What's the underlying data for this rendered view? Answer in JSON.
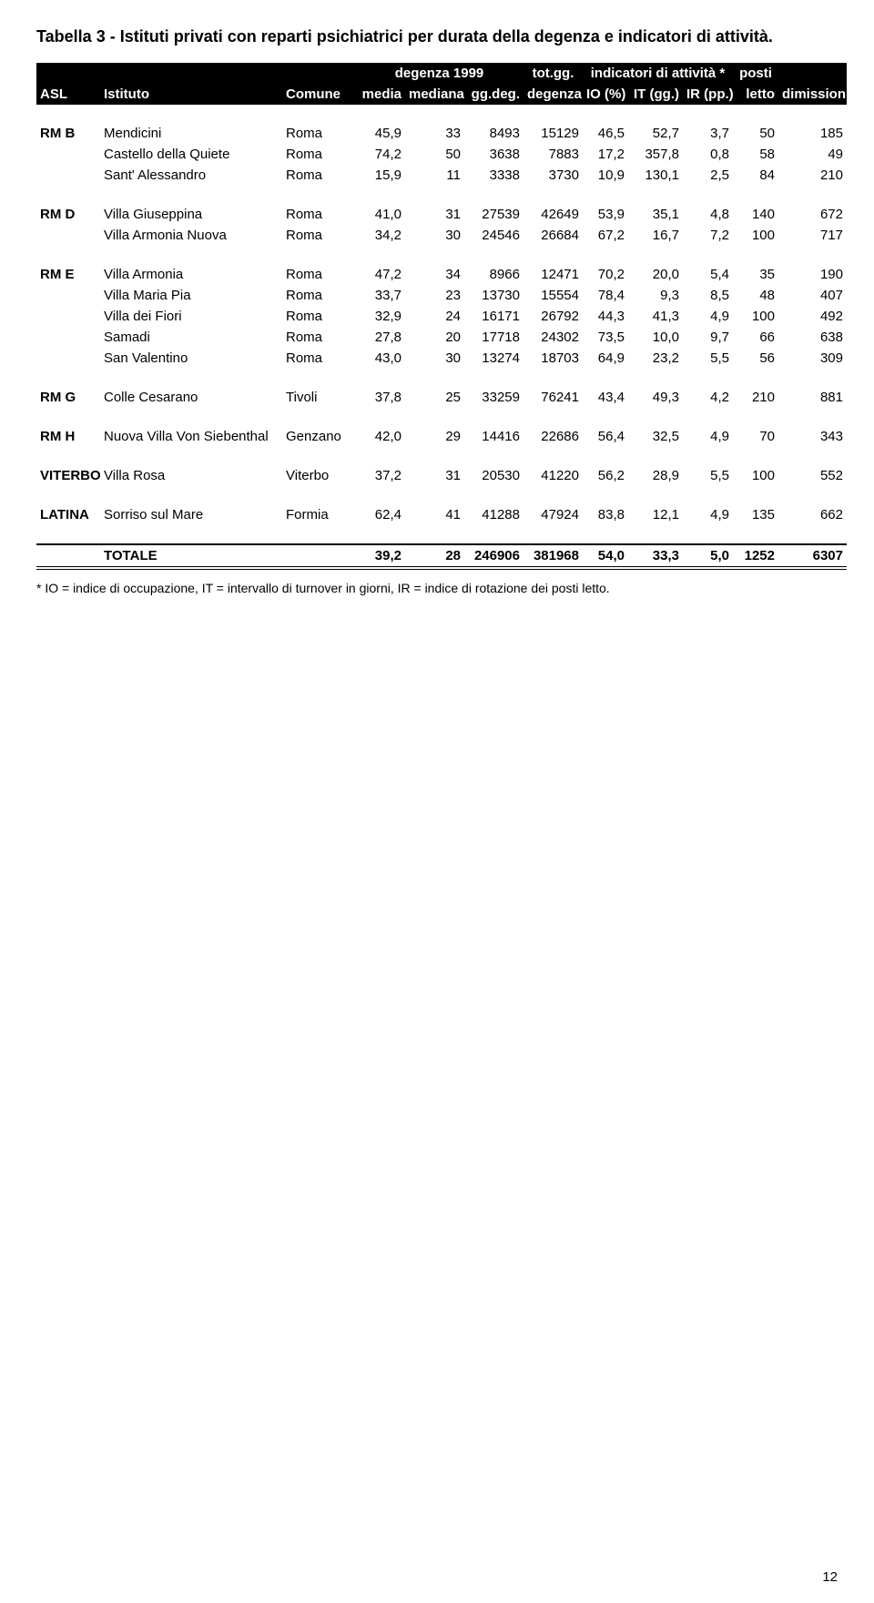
{
  "caption": "Tabella 3 - Istituti privati con reparti psichiatrici per durata della degenza e indicatori di attività.",
  "header": {
    "asl": "ASL",
    "istituto": "Istituto",
    "comune": "Comune",
    "degenza_group": "degenza 1999",
    "media": "media",
    "mediana": "mediana",
    "ggdeg": "gg.deg.",
    "totgg_group": "tot.gg.",
    "degenza": "degenza",
    "indicatori_group": "indicatori di attività *",
    "io": "IO (%)",
    "it": "IT (gg.)",
    "ir": "IR (pp.)",
    "posti_group": "posti",
    "letto": "letto",
    "dimissioni": "dimissioni"
  },
  "groups": [
    {
      "asl": "RM B",
      "rows": [
        {
          "istituto": "Mendicini",
          "comune": "Roma",
          "media": "45,9",
          "mediana": "33",
          "ggdeg": "8493",
          "totgg": "15129",
          "io": "46,5",
          "it": "52,7",
          "ir": "3,7",
          "posti": "50",
          "dim": "185"
        },
        {
          "istituto": "Castello della Quiete",
          "comune": "Roma",
          "media": "74,2",
          "mediana": "50",
          "ggdeg": "3638",
          "totgg": "7883",
          "io": "17,2",
          "it": "357,8",
          "ir": "0,8",
          "posti": "58",
          "dim": "49"
        },
        {
          "istituto": "Sant' Alessandro",
          "comune": "Roma",
          "media": "15,9",
          "mediana": "11",
          "ggdeg": "3338",
          "totgg": "3730",
          "io": "10,9",
          "it": "130,1",
          "ir": "2,5",
          "posti": "84",
          "dim": "210"
        }
      ]
    },
    {
      "asl": "RM D",
      "rows": [
        {
          "istituto": "Villa Giuseppina",
          "comune": "Roma",
          "media": "41,0",
          "mediana": "31",
          "ggdeg": "27539",
          "totgg": "42649",
          "io": "53,9",
          "it": "35,1",
          "ir": "4,8",
          "posti": "140",
          "dim": "672"
        },
        {
          "istituto": "Villa Armonia Nuova",
          "comune": "Roma",
          "media": "34,2",
          "mediana": "30",
          "ggdeg": "24546",
          "totgg": "26684",
          "io": "67,2",
          "it": "16,7",
          "ir": "7,2",
          "posti": "100",
          "dim": "717"
        }
      ]
    },
    {
      "asl": "RM E",
      "rows": [
        {
          "istituto": "Villa Armonia",
          "comune": "Roma",
          "media": "47,2",
          "mediana": "34",
          "ggdeg": "8966",
          "totgg": "12471",
          "io": "70,2",
          "it": "20,0",
          "ir": "5,4",
          "posti": "35",
          "dim": "190"
        },
        {
          "istituto": "Villa Maria Pia",
          "comune": "Roma",
          "media": "33,7",
          "mediana": "23",
          "ggdeg": "13730",
          "totgg": "15554",
          "io": "78,4",
          "it": "9,3",
          "ir": "8,5",
          "posti": "48",
          "dim": "407"
        },
        {
          "istituto": "Villa dei Fiori",
          "comune": "Roma",
          "media": "32,9",
          "mediana": "24",
          "ggdeg": "16171",
          "totgg": "26792",
          "io": "44,3",
          "it": "41,3",
          "ir": "4,9",
          "posti": "100",
          "dim": "492"
        },
        {
          "istituto": "Samadi",
          "comune": "Roma",
          "media": "27,8",
          "mediana": "20",
          "ggdeg": "17718",
          "totgg": "24302",
          "io": "73,5",
          "it": "10,0",
          "ir": "9,7",
          "posti": "66",
          "dim": "638"
        },
        {
          "istituto": "San Valentino",
          "comune": "Roma",
          "media": "43,0",
          "mediana": "30",
          "ggdeg": "13274",
          "totgg": "18703",
          "io": "64,9",
          "it": "23,2",
          "ir": "5,5",
          "posti": "56",
          "dim": "309"
        }
      ]
    },
    {
      "asl": "RM G",
      "rows": [
        {
          "istituto": "Colle Cesarano",
          "comune": "Tivoli",
          "media": "37,8",
          "mediana": "25",
          "ggdeg": "33259",
          "totgg": "76241",
          "io": "43,4",
          "it": "49,3",
          "ir": "4,2",
          "posti": "210",
          "dim": "881"
        }
      ]
    },
    {
      "asl": "RM H",
      "rows": [
        {
          "istituto": "Nuova Villa Von Siebenthal",
          "comune": "Genzano",
          "media": "42,0",
          "mediana": "29",
          "ggdeg": "14416",
          "totgg": "22686",
          "io": "56,4",
          "it": "32,5",
          "ir": "4,9",
          "posti": "70",
          "dim": "343"
        }
      ]
    },
    {
      "asl": "VITERBO",
      "rows": [
        {
          "istituto": "Villa Rosa",
          "comune": "Viterbo",
          "media": "37,2",
          "mediana": "31",
          "ggdeg": "20530",
          "totgg": "41220",
          "io": "56,2",
          "it": "28,9",
          "ir": "5,5",
          "posti": "100",
          "dim": "552"
        }
      ]
    },
    {
      "asl": "LATINA",
      "rows": [
        {
          "istituto": "Sorriso sul Mare",
          "comune": "Formia",
          "media": "62,4",
          "mediana": "41",
          "ggdeg": "41288",
          "totgg": "47924",
          "io": "83,8",
          "it": "12,1",
          "ir": "4,9",
          "posti": "135",
          "dim": "662"
        }
      ]
    }
  ],
  "total": {
    "label": "TOTALE",
    "media": "39,2",
    "mediana": "28",
    "ggdeg": "246906",
    "totgg": "381968",
    "io": "54,0",
    "it": "33,3",
    "ir": "5,0",
    "posti": "1252",
    "dim": "6307"
  },
  "footnote": "* IO = indice di occupazione,  IT = intervallo di turnover in giorni,  IR = indice di rotazione dei posti letto.",
  "pagenum": "12"
}
